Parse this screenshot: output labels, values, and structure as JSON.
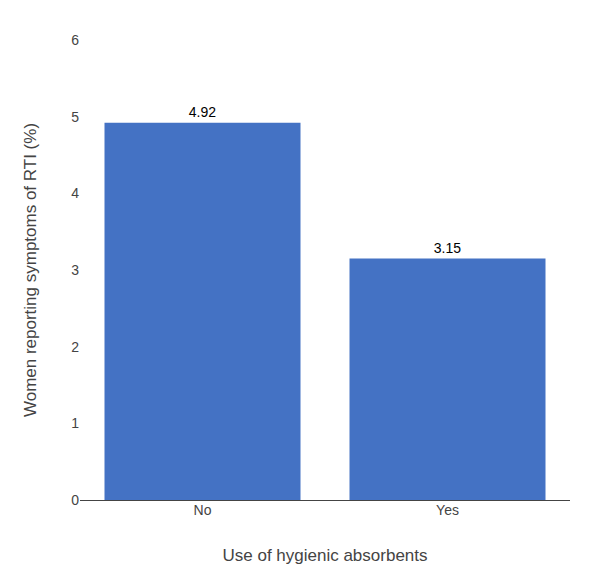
{
  "chart_data": {
    "type": "bar",
    "categories": [
      "No",
      "Yes"
    ],
    "values": [
      4.92,
      3.15
    ],
    "color": "#4472C4",
    "xlabel": "Use of hygienic absorbents",
    "ylabel": "Women reporting symptoms of RTI (%)",
    "ylim": [
      0,
      6
    ],
    "yticks": [
      0,
      1,
      2,
      3,
      4,
      5,
      6
    ],
    "grid": false,
    "data_labels": true
  }
}
